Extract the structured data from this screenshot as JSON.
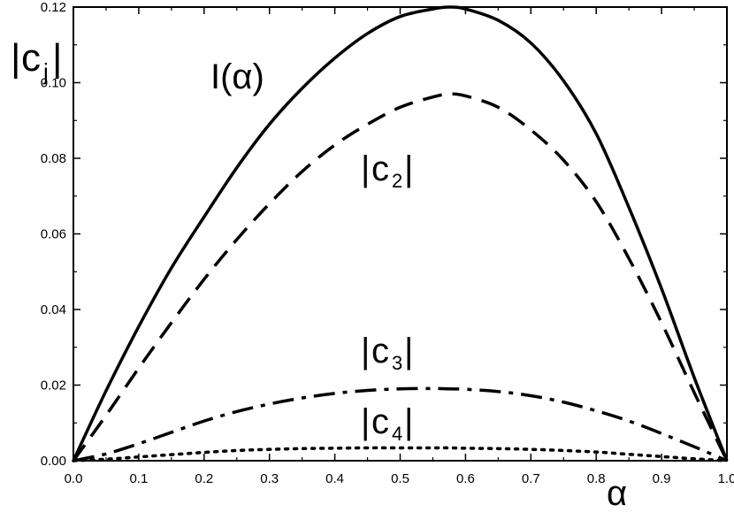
{
  "chart_data": {
    "type": "line",
    "title": "",
    "xlabel": "α",
    "ylabel": "|c_j|",
    "xlim": [
      0.0,
      1.0
    ],
    "ylim": [
      0.0,
      0.12
    ],
    "x_ticks": [
      "0.0",
      "0.1",
      "0.2",
      "0.3",
      "0.4",
      "0.5",
      "0.6",
      "0.7",
      "0.8",
      "0.9",
      "1.0"
    ],
    "y_ticks": [
      "0.00",
      "0.02",
      "0.04",
      "0.06",
      "0.08",
      "0.10",
      "0.12"
    ],
    "grid": false,
    "x": [
      0.0,
      0.05,
      0.1,
      0.15,
      0.2,
      0.25,
      0.3,
      0.35,
      0.4,
      0.45,
      0.5,
      0.55,
      0.575,
      0.6,
      0.65,
      0.7,
      0.75,
      0.8,
      0.85,
      0.9,
      0.95,
      1.0
    ],
    "series": [
      {
        "name": "I(α)",
        "style": "solid",
        "values": [
          0.0,
          0.0185,
          0.0355,
          0.051,
          0.0645,
          0.0775,
          0.089,
          0.0985,
          0.1065,
          0.113,
          0.1175,
          0.1195,
          0.12,
          0.1195,
          0.1165,
          0.1105,
          0.1005,
          0.0865,
          0.067,
          0.0455,
          0.022,
          0.0
        ]
      },
      {
        "name": "|c2|",
        "style": "dashed",
        "values": [
          0.0,
          0.012,
          0.0245,
          0.0365,
          0.048,
          0.0585,
          0.068,
          0.0765,
          0.0835,
          0.089,
          0.0935,
          0.0962,
          0.097,
          0.0965,
          0.0935,
          0.0875,
          0.0795,
          0.0685,
          0.0535,
          0.0365,
          0.018,
          0.0
        ]
      },
      {
        "name": "|c3|",
        "style": "dashdot",
        "values": [
          0.0,
          0.0018,
          0.0045,
          0.0075,
          0.0105,
          0.013,
          0.015,
          0.0166,
          0.0178,
          0.0186,
          0.019,
          0.0191,
          0.019,
          0.0189,
          0.0183,
          0.0172,
          0.0155,
          0.0132,
          0.0105,
          0.0072,
          0.0037,
          0.0
        ]
      },
      {
        "name": "|c4|",
        "style": "dotted",
        "values": [
          0.0,
          0.0004,
          0.001,
          0.0016,
          0.0022,
          0.0027,
          0.003,
          0.0032,
          0.0033,
          0.0034,
          0.0034,
          0.0034,
          0.0034,
          0.0033,
          0.0032,
          0.003,
          0.0027,
          0.0023,
          0.0017,
          0.0011,
          0.0005,
          0.0
        ]
      }
    ],
    "annotations": {
      "I": "I(α)",
      "c2": "c",
      "c2_sub": "2",
      "c3": "c",
      "c3_sub": "3",
      "c4": "c",
      "c4_sub": "4",
      "ylabel_main": "c",
      "ylabel_sub": "j",
      "bar": "|"
    }
  }
}
